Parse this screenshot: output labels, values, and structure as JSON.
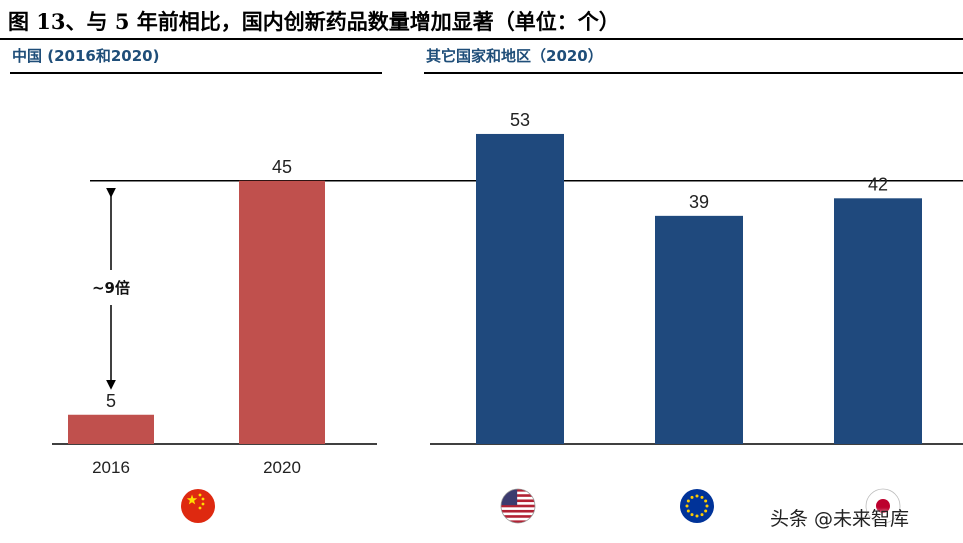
{
  "figure": {
    "title": "图 13、与 5 年前相比，国内创新药品数量增加显著（单位：个）"
  },
  "watermark": "头条 @未来智库",
  "colors": {
    "china_bar": "#c0504d",
    "other_bar": "#1f497d",
    "subtitle": "#1f4e79"
  },
  "chart_data": [
    {
      "type": "bar",
      "title": "中国 (2016和2020)",
      "categories": [
        "2016",
        "2020"
      ],
      "values": [
        5,
        45
      ],
      "flag_icons": [
        "china-flag-icon",
        "china-flag-icon"
      ],
      "annotation": {
        "text": "~9倍",
        "from_value": 5,
        "to_value": 45
      },
      "reference_line": 45,
      "ylim": [
        0,
        60
      ]
    },
    {
      "type": "bar",
      "title": "其它国家和地区（2020）",
      "categories": [
        "",
        "",
        ""
      ],
      "values": [
        53,
        39,
        42
      ],
      "flag_icons": [
        "us-flag-icon",
        "eu-flag-icon",
        "japan-flag-icon"
      ],
      "ylim": [
        0,
        60
      ]
    }
  ]
}
